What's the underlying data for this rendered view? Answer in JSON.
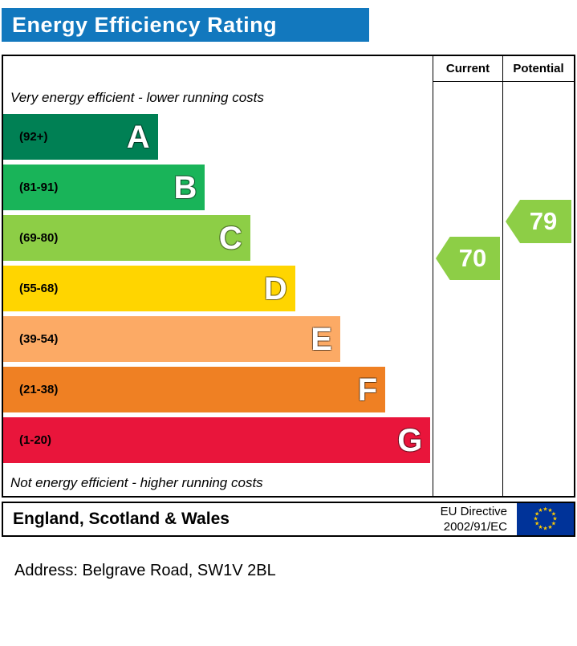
{
  "title": "Energy Efficiency Rating",
  "columns": {
    "current": "Current",
    "potential": "Potential"
  },
  "top_note": "Very energy efficient - lower running costs",
  "bottom_note": "Not energy efficient - higher running costs",
  "footer": {
    "region": "England, Scotland & Wales",
    "directive_line1": "EU Directive",
    "directive_line2": "2002/91/EC"
  },
  "address_line": "Address: Belgrave Road, SW1V 2BL",
  "colors": {
    "header": "#1278be",
    "flag_blue": "#003399",
    "flag_stars": "#ffcc00"
  },
  "chart_data": {
    "type": "bar",
    "title": "Energy Efficiency Rating",
    "orientation": "horizontal",
    "bands": [
      {
        "letter": "A",
        "range": "(92+)",
        "color": "#008054",
        "width_pct": 36
      },
      {
        "letter": "B",
        "range": "(81-91)",
        "color": "#19b459",
        "width_pct": 47
      },
      {
        "letter": "C",
        "range": "(69-80)",
        "color": "#8dce46",
        "width_pct": 57.5
      },
      {
        "letter": "D",
        "range": "(55-68)",
        "color": "#ffd500",
        "width_pct": 68
      },
      {
        "letter": "E",
        "range": "(39-54)",
        "color": "#fcaa65",
        "width_pct": 78.5
      },
      {
        "letter": "F",
        "range": "(21-38)",
        "color": "#ef8023",
        "width_pct": 89
      },
      {
        "letter": "G",
        "range": "(1-20)",
        "color": "#e9153b",
        "width_pct": 99.5
      }
    ],
    "current": {
      "value": 70,
      "band": "C",
      "color": "#8dce46"
    },
    "potential": {
      "value": 79,
      "band": "C",
      "color": "#8dce46"
    }
  }
}
